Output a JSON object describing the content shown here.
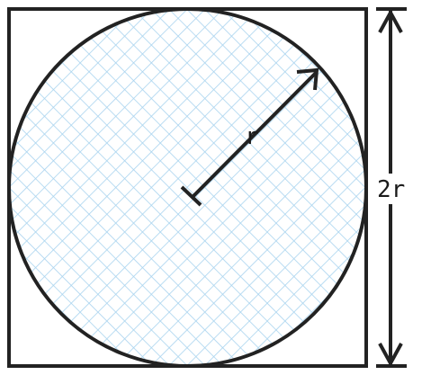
{
  "diagram": {
    "radius_label": "r",
    "diameter_label": "2r",
    "colors": {
      "stroke": "#222222",
      "hatch": "#a9d4ef",
      "fill": "#ffffff"
    }
  }
}
